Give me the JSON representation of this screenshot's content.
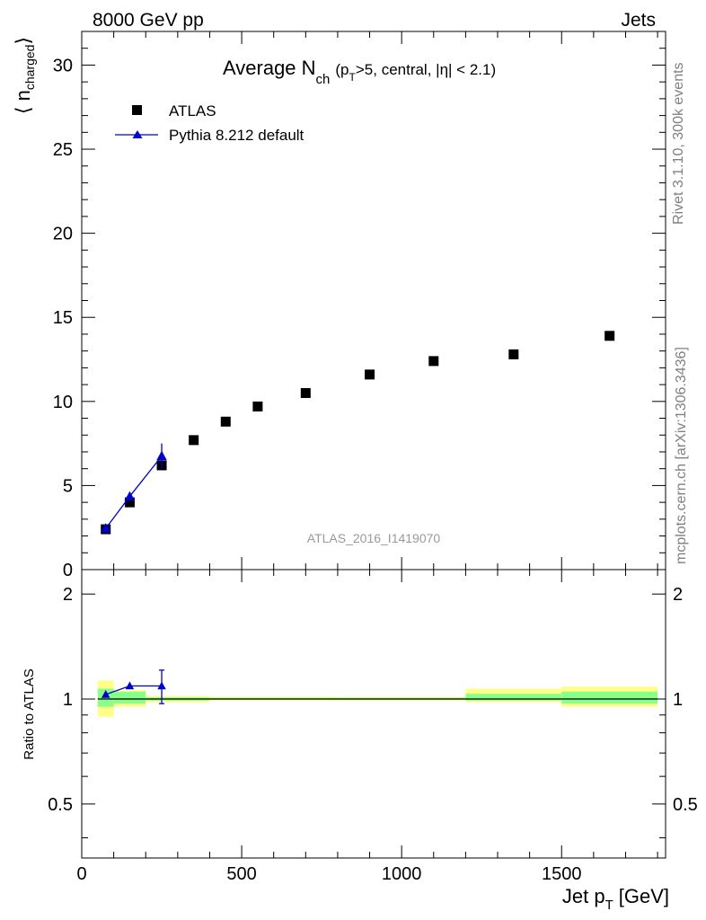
{
  "header": {
    "left": "8000 GeV pp",
    "right": "Jets"
  },
  "title": {
    "main": "Average N",
    "sub": "ch",
    "cond_open": "(p",
    "cond_sub": "T",
    "cond_rest": ">5, central, |η| < 2.1)"
  },
  "side_texts": {
    "rivet": "Rivet 3.1.10,  300k events",
    "mcplots": "mcplots.cern.ch [arXiv:1306.3436]"
  },
  "watermark": "ATLAS_2016_I1419070",
  "legend": {
    "data_label": "ATLAS",
    "mc_label": "Pythia 8.212 default"
  },
  "colors": {
    "data": "#000000",
    "mc": "#0000cc",
    "band_inner": "#88ff88",
    "band_outer": "#ffff88",
    "side_text": "#808080",
    "watermark": "#999999"
  },
  "chart_data": [
    {
      "type": "scatter",
      "panel": "main",
      "title": "Average N_ch (p_T>5, central, |η| < 2.1)",
      "ylabel_main": "⟨ n",
      "ylabel_sub": "charged",
      "ylabel_close": "⟩",
      "xlim": [
        0,
        1825
      ],
      "ylim": [
        0,
        32
      ],
      "ytick_labels": [
        "0",
        "5",
        "10",
        "15",
        "20",
        "25",
        "30"
      ],
      "series": [
        {
          "name": "ATLAS",
          "marker": "square",
          "points": [
            {
              "x": 75,
              "y": 2.4,
              "xlo": 50,
              "xhi": 100
            },
            {
              "x": 150,
              "y": 4.0,
              "xlo": 100,
              "xhi": 200
            },
            {
              "x": 250,
              "y": 6.2,
              "xlo": 200,
              "xhi": 300
            },
            {
              "x": 350,
              "y": 7.7,
              "xlo": 300,
              "xhi": 400
            },
            {
              "x": 450,
              "y": 8.8,
              "xlo": 400,
              "xhi": 500
            },
            {
              "x": 550,
              "y": 9.7,
              "xlo": 500,
              "xhi": 600
            },
            {
              "x": 700,
              "y": 10.5,
              "xlo": 600,
              "xhi": 800
            },
            {
              "x": 900,
              "y": 11.6,
              "xlo": 800,
              "xhi": 1000
            },
            {
              "x": 1100,
              "y": 12.4,
              "xlo": 1000,
              "xhi": 1200
            },
            {
              "x": 1350,
              "y": 12.8,
              "xlo": 1200,
              "xhi": 1500
            },
            {
              "x": 1650,
              "y": 13.9,
              "xlo": 1500,
              "xhi": 1800
            }
          ]
        },
        {
          "name": "Pythia 8.212 default",
          "marker": "triangle",
          "line": true,
          "points": [
            {
              "x": 75,
              "y": 2.45,
              "err": 0.1
            },
            {
              "x": 150,
              "y": 4.35,
              "err": 0.1
            },
            {
              "x": 250,
              "y": 6.75,
              "err": 0.75
            }
          ]
        }
      ]
    },
    {
      "type": "scatter",
      "panel": "ratio",
      "ylabel": "Ratio to ATLAS",
      "xlabel_main": "Jet p",
      "xlabel_sub": "T",
      "xlabel_unit": "[GeV]",
      "xlim": [
        0,
        1825
      ],
      "ylim": [
        0.35,
        2.35
      ],
      "xtick_labels": [
        "0",
        "500",
        "1000",
        "1500"
      ],
      "ytick_labels": [
        "0.5",
        "1",
        "2"
      ],
      "bands": [
        {
          "xlo": 50,
          "xhi": 100,
          "inner": [
            0.95,
            1.07
          ],
          "outer": [
            0.89,
            1.13
          ]
        },
        {
          "xlo": 100,
          "xhi": 200,
          "inner": [
            0.97,
            1.05
          ],
          "outer": [
            0.95,
            1.06
          ]
        },
        {
          "xlo": 200,
          "xhi": 400,
          "inner": [
            0.99,
            1.01
          ],
          "outer": [
            0.98,
            1.02
          ]
        },
        {
          "xlo": 400,
          "xhi": 800,
          "inner": [
            0.995,
            1.008
          ],
          "outer": [
            0.99,
            1.015
          ]
        },
        {
          "xlo": 800,
          "xhi": 1200,
          "inner": [
            0.995,
            1.008
          ],
          "outer": [
            0.99,
            1.013
          ]
        },
        {
          "xlo": 1200,
          "xhi": 1500,
          "inner": [
            0.99,
            1.035
          ],
          "outer": [
            0.98,
            1.07
          ]
        },
        {
          "xlo": 1500,
          "xhi": 1800,
          "inner": [
            0.97,
            1.05
          ],
          "outer": [
            0.95,
            1.085
          ]
        }
      ],
      "series": [
        {
          "name": "Pythia 8.212 default",
          "points": [
            {
              "x": 75,
              "y": 1.03,
              "err": 0.01
            },
            {
              "x": 150,
              "y": 1.09,
              "err": 0.01
            },
            {
              "x": 250,
              "y": 1.09,
              "err": 0.12
            }
          ]
        }
      ]
    }
  ]
}
